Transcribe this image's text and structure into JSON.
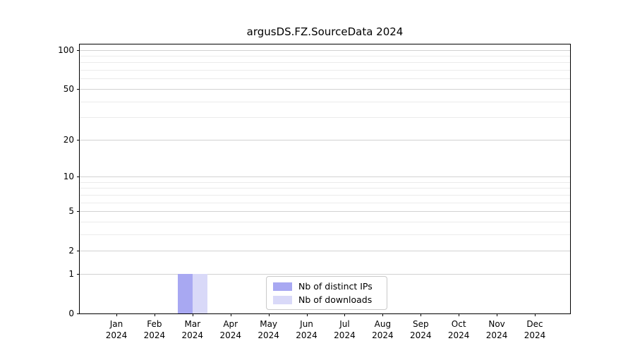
{
  "chart_data": {
    "type": "bar",
    "title": "argusDS.FZ.SourceData 2024",
    "scale": "log1p",
    "categories": [
      "Jan",
      "Feb",
      "Mar",
      "Apr",
      "May",
      "Jun",
      "Jul",
      "Aug",
      "Sep",
      "Oct",
      "Nov",
      "Dec"
    ],
    "x_year": "2024",
    "series": [
      {
        "name": "Nb of distinct IPs",
        "color": "#a8a8f2",
        "values": [
          0,
          0,
          1,
          0,
          0,
          0,
          0,
          0,
          0,
          0,
          0,
          0
        ]
      },
      {
        "name": "Nb of downloads",
        "color": "#d9d9f8",
        "values": [
          0,
          0,
          1,
          0,
          0,
          0,
          0,
          0,
          0,
          0,
          0,
          0
        ]
      }
    ],
    "y_major_ticks": [
      0,
      1,
      2,
      5,
      10,
      20,
      50,
      100
    ],
    "y_major_tick_labels": [
      "0",
      "1",
      "2",
      "5",
      "10",
      "20",
      "50",
      "100"
    ],
    "y_minor_ticks": [
      3,
      4,
      6,
      7,
      8,
      9,
      30,
      40,
      60,
      70,
      80,
      90
    ],
    "ylim": [
      0,
      110
    ],
    "xlabel": "",
    "ylabel": "",
    "grid": true,
    "legend_position": "lower center",
    "colors": {
      "grid_major": "#d2d2d2",
      "grid_minor": "#ebebeb",
      "axis": "#000000",
      "text": "#000000",
      "background": "#ffffff"
    }
  }
}
